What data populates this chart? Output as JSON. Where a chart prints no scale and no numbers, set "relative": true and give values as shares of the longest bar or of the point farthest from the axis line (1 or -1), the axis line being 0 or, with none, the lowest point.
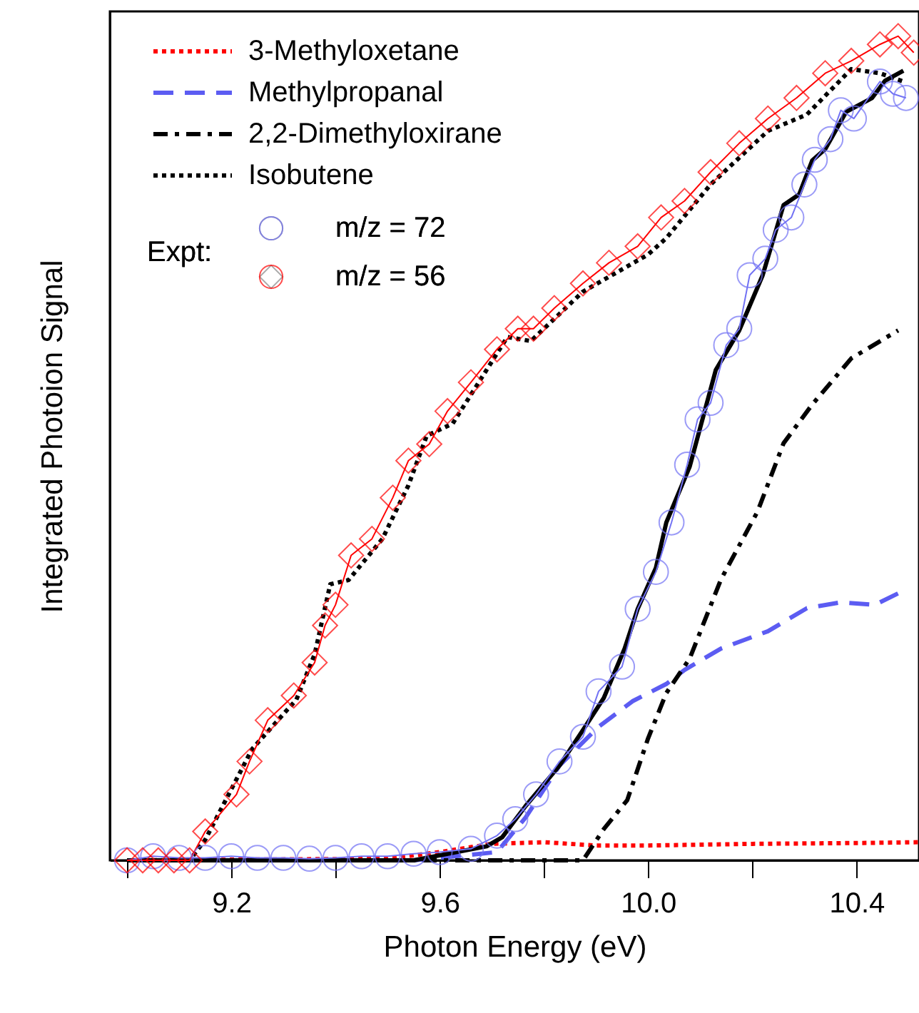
{
  "chart_data": {
    "type": "line",
    "xlabel": "Photon Energy (eV)",
    "ylabel": "Integrated Photoion Signal",
    "relative": true,
    "legend": "top left",
    "legend_title": "Expt:",
    "xlim": [
      8.967,
      10.52
    ],
    "xticks": [
      {
        "value": 9.0,
        "label": null
      },
      9.2,
      {
        "value": 9.4,
        "label": null
      },
      9.6,
      {
        "value": 9.8,
        "label": null
      },
      {
        "value": 10.0,
        "label": "10.0"
      },
      {
        "value": 10.2,
        "label": null
      },
      10.4
    ],
    "series": [
      {
        "name": "3-Methyloxetane",
        "color": "#ff0000",
        "line_style": "dotted",
        "x": [
          9.0,
          9.5,
          9.6,
          9.7,
          9.8,
          9.9,
          10.0,
          10.2,
          10.4,
          10.52
        ],
        "values": [
          0,
          0.002,
          0.01,
          0.02,
          0.022,
          0.018,
          0.018,
          0.02,
          0.021,
          0.022
        ]
      },
      {
        "name": "Methylpropanal",
        "color": "#5c5cf2",
        "line_style": "dashed",
        "x": [
          9.0,
          9.55,
          9.71,
          9.765,
          9.83,
          9.905,
          9.97,
          10.035,
          10.07,
          10.14,
          10.23,
          10.305,
          10.37,
          10.435,
          10.49
        ],
        "values": [
          0,
          0,
          0.01,
          0.052,
          0.115,
          0.162,
          0.193,
          0.214,
          0.231,
          0.257,
          0.278,
          0.306,
          0.313,
          0.31,
          0.327
        ]
      },
      {
        "name": "2,2-Dimethyloxirane",
        "color": "#000000",
        "line_style": "dashdot",
        "x": [
          9.0,
          9.875,
          9.915,
          9.96,
          10.0,
          10.035,
          10.08,
          10.14,
          10.21,
          10.26,
          10.315,
          10.39,
          10.48
        ],
        "values": [
          0,
          0,
          0.038,
          0.073,
          0.148,
          0.203,
          0.245,
          0.341,
          0.423,
          0.506,
          0.553,
          0.609,
          0.643
        ]
      },
      {
        "name": "Isobutene",
        "color": "#000000",
        "line_style": "dotted",
        "x": [
          9.0,
          9.12,
          9.15,
          9.24,
          9.325,
          9.36,
          9.39,
          9.425,
          9.49,
          9.54,
          9.575,
          9.625,
          9.73,
          9.775,
          9.875,
          10.0,
          10.035,
          10.12,
          10.23,
          10.305,
          10.39,
          10.445,
          10.49
        ],
        "values": [
          0,
          0,
          0.025,
          0.135,
          0.195,
          0.25,
          0.335,
          0.34,
          0.39,
          0.455,
          0.515,
          0.53,
          0.635,
          0.63,
          0.69,
          0.735,
          0.755,
          0.82,
          0.885,
          0.905,
          0.96,
          0.955,
          0.945
        ]
      },
      {
        "name": "m/z = 72",
        "color": "#7272f4",
        "marker": "circle",
        "line_style": "solid",
        "x": [
          9.0,
          9.05,
          9.1,
          9.15,
          9.2,
          9.25,
          9.3,
          9.35,
          9.4,
          9.45,
          9.5,
          9.55,
          9.6,
          9.66,
          9.71,
          9.745,
          9.785,
          9.83,
          9.875,
          9.905,
          9.95,
          9.98,
          10.015,
          10.045,
          10.075,
          10.095,
          10.12,
          10.15,
          10.175,
          10.195,
          10.225,
          10.245,
          10.275,
          10.3,
          10.32,
          10.35,
          10.37,
          10.395,
          10.445,
          10.47,
          10.495
        ],
        "values": [
          0,
          0.005,
          0.003,
          0.003,
          0.005,
          0.003,
          0.003,
          0.002,
          0.003,
          0.005,
          0.005,
          0.008,
          0.01,
          0.014,
          0.03,
          0.05,
          0.08,
          0.12,
          0.15,
          0.205,
          0.235,
          0.305,
          0.35,
          0.41,
          0.48,
          0.535,
          0.555,
          0.625,
          0.645,
          0.71,
          0.73,
          0.765,
          0.78,
          0.82,
          0.85,
          0.875,
          0.91,
          0.9,
          0.945,
          0.93,
          0.925
        ]
      },
      {
        "name": "m/z = 56",
        "color": "#ff0000",
        "marker": "diamond",
        "line_style": "solid",
        "x": [
          9.0,
          9.03,
          9.06,
          9.09,
          9.12,
          9.15,
          9.21,
          9.235,
          9.27,
          9.32,
          9.36,
          9.38,
          9.4,
          9.43,
          9.47,
          9.51,
          9.54,
          9.58,
          9.615,
          9.66,
          9.71,
          9.75,
          9.78,
          9.82,
          9.875,
          9.925,
          9.98,
          10.025,
          10.07,
          10.12,
          10.175,
          10.23,
          10.285,
          10.34,
          10.39,
          10.445,
          10.48,
          10.51
        ],
        "values": [
          0,
          0,
          0,
          0,
          0,
          0.035,
          0.08,
          0.12,
          0.17,
          0.2,
          0.24,
          0.285,
          0.31,
          0.37,
          0.39,
          0.44,
          0.485,
          0.505,
          0.545,
          0.58,
          0.62,
          0.645,
          0.645,
          0.67,
          0.7,
          0.725,
          0.745,
          0.78,
          0.8,
          0.835,
          0.87,
          0.9,
          0.925,
          0.955,
          0.97,
          0.99,
          1.0,
          0.98
        ]
      },
      {
        "color": "#000000",
        "line_style": "solid",
        "x": [
          9.0,
          9.55,
          9.69,
          9.72,
          9.765,
          9.83,
          9.875,
          9.915,
          9.955,
          9.98,
          10.015,
          10.035,
          10.08,
          10.13,
          10.175,
          10.22,
          10.26,
          10.29,
          10.315,
          10.34,
          10.38,
          10.43,
          10.455,
          10.49
        ],
        "values": [
          0,
          0,
          0.017,
          0.028,
          0.066,
          0.115,
          0.158,
          0.197,
          0.257,
          0.305,
          0.355,
          0.41,
          0.478,
          0.595,
          0.643,
          0.71,
          0.795,
          0.808,
          0.849,
          0.863,
          0.908,
          0.925,
          0.946,
          0.958
        ]
      }
    ]
  }
}
